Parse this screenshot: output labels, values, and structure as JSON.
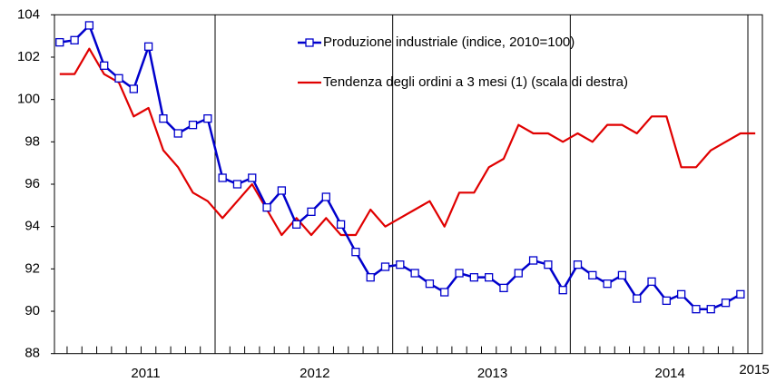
{
  "chart_data": {
    "type": "line",
    "categories": [
      null,
      null,
      null,
      null,
      null,
      null,
      null,
      null,
      null,
      null,
      null,
      null,
      null,
      null,
      null,
      null,
      null,
      null,
      null,
      null,
      null,
      null,
      null,
      null,
      null,
      null,
      null,
      null,
      null,
      null,
      null,
      null,
      null,
      null,
      null,
      null,
      null,
      null,
      null,
      null,
      null,
      null,
      null,
      null,
      null,
      null,
      null,
      null
    ],
    "year_labels": [
      "2011",
      "2012",
      "2013",
      "2014",
      "2015"
    ],
    "series": [
      {
        "name": "Produzione industriale (indice, 2010=100)",
        "color": "#0000cc",
        "marker": "square",
        "values": [
          102.7,
          102.8,
          103.5,
          101.6,
          101.0,
          100.5,
          102.5,
          99.1,
          98.4,
          98.8,
          99.1,
          96.3,
          96.0,
          96.3,
          94.9,
          95.7,
          94.1,
          94.7,
          95.4,
          94.1,
          92.8,
          91.6,
          92.1,
          92.2,
          91.8,
          91.3,
          90.9,
          91.8,
          91.6,
          91.6,
          91.1,
          91.8,
          92.4,
          92.2,
          91.0,
          92.2,
          91.7,
          91.3,
          91.7,
          90.6,
          91.4,
          90.5,
          90.8,
          90.1,
          90.1,
          90.4,
          90.8,
          null
        ]
      },
      {
        "name": "Tendenza degli ordini a 3 mesi (1) (scala di destra)",
        "color": "#e00000",
        "values": [
          101.2,
          101.2,
          102.4,
          101.2,
          100.8,
          99.2,
          99.6,
          97.6,
          96.8,
          95.6,
          95.2,
          94.4,
          95.2,
          96.0,
          94.8,
          93.6,
          94.4,
          93.6,
          94.4,
          93.6,
          93.6,
          94.8,
          94.0,
          94.4,
          94.8,
          95.2,
          94.0,
          95.6,
          95.6,
          96.8,
          97.2,
          98.8,
          98.4,
          98.4,
          98.0,
          98.4,
          98.0,
          98.8,
          98.8,
          98.4,
          99.2,
          99.2,
          96.8,
          96.8,
          97.6,
          98.0,
          98.4,
          98.4
        ]
      }
    ],
    "ylim": [
      88,
      104
    ],
    "yticks": [
      88,
      90,
      92,
      94,
      96,
      98,
      100,
      102,
      104
    ]
  }
}
